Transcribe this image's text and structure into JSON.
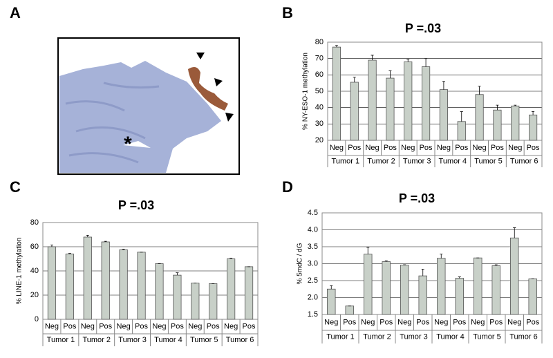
{
  "chart_data": [
    {
      "type": "image",
      "panel": "A"
    },
    {
      "type": "bar",
      "panel": "B",
      "title": "P =.03",
      "ylabel": "% NY-ESO-1 methylation",
      "categories": [
        "Neg",
        "Pos",
        "Neg",
        "Pos",
        "Neg",
        "Pos",
        "Neg",
        "Pos",
        "Neg",
        "Pos",
        "Neg",
        "Pos"
      ],
      "groups": [
        "Tumor 1",
        "Tumor 2",
        "Tumor 3",
        "Tumor 4",
        "Tumor 5",
        "Tumor 6"
      ],
      "color": "#c8d0c8",
      "series": [
        {
          "values": [
            77,
            55.5,
            69,
            58,
            68,
            65,
            51,
            31.5,
            48,
            38.5,
            41,
            35.5
          ],
          "errors": [
            1,
            3,
            3,
            4.5,
            1.5,
            5,
            5,
            6,
            5,
            3,
            0.5,
            2
          ]
        }
      ],
      "ylim": [
        20,
        80
      ],
      "yticks": [
        20,
        30,
        40,
        50,
        60,
        70,
        80
      ],
      "grid": true
    },
    {
      "type": "bar",
      "panel": "C",
      "title": "P =.03",
      "ylabel": "% LINE-1 methylation",
      "categories": [
        "Neg",
        "Pos",
        "Neg",
        "Pos",
        "Neg",
        "Pos",
        "Neg",
        "Pos",
        "Neg",
        "Pos",
        "Neg",
        "Pos"
      ],
      "groups": [
        "Tumor 1",
        "Tumor 2",
        "Tumor 3",
        "Tumor 4",
        "Tumor 5",
        "Tumor 6"
      ],
      "color": "#c8d0c8",
      "series": [
        {
          "values": [
            60,
            54,
            68,
            64,
            57.5,
            55.5,
            46,
            36.5,
            30,
            29.5,
            50,
            43.5
          ],
          "errors": [
            1.5,
            0.5,
            1.5,
            0.5,
            0.5,
            0,
            0,
            2,
            0,
            0,
            0.5,
            0
          ]
        }
      ],
      "ylim": [
        0,
        80
      ],
      "yticks": [
        0,
        20,
        40,
        60,
        80
      ],
      "grid": true
    },
    {
      "type": "bar",
      "panel": "D",
      "title": "P =.03",
      "ylabel": "% 5mdC / dG",
      "categories": [
        "Neg",
        "Pos",
        "Neg",
        "Pos",
        "Neg",
        "Pos",
        "Neg",
        "Pos",
        "Neg",
        "Pos",
        "Neg",
        "Pos"
      ],
      "groups": [
        "Tumor 1",
        "Tumor 2",
        "Tumor 3",
        "Tumor 4",
        "Tumor 5",
        "Tumor 6"
      ],
      "color": "#c8d0c8",
      "series": [
        {
          "values": [
            2.25,
            1.75,
            3.28,
            3.06,
            2.96,
            2.64,
            3.16,
            2.57,
            3.17,
            2.94,
            3.76,
            2.55
          ],
          "errors": [
            0.1,
            0,
            0.2,
            0.02,
            0.01,
            0.2,
            0.12,
            0.04,
            0,
            0.03,
            0.3,
            0
          ]
        }
      ],
      "ylim": [
        1.5,
        4.5
      ],
      "yticks": [
        1.5,
        {
          "value": 2,
          "label": "2.0"
        },
        2.5,
        {
          "value": 3,
          "label": "3.0"
        },
        3.5,
        {
          "value": 4,
          "label": "4.0"
        },
        4.5
      ],
      "grid": true
    }
  ]
}
